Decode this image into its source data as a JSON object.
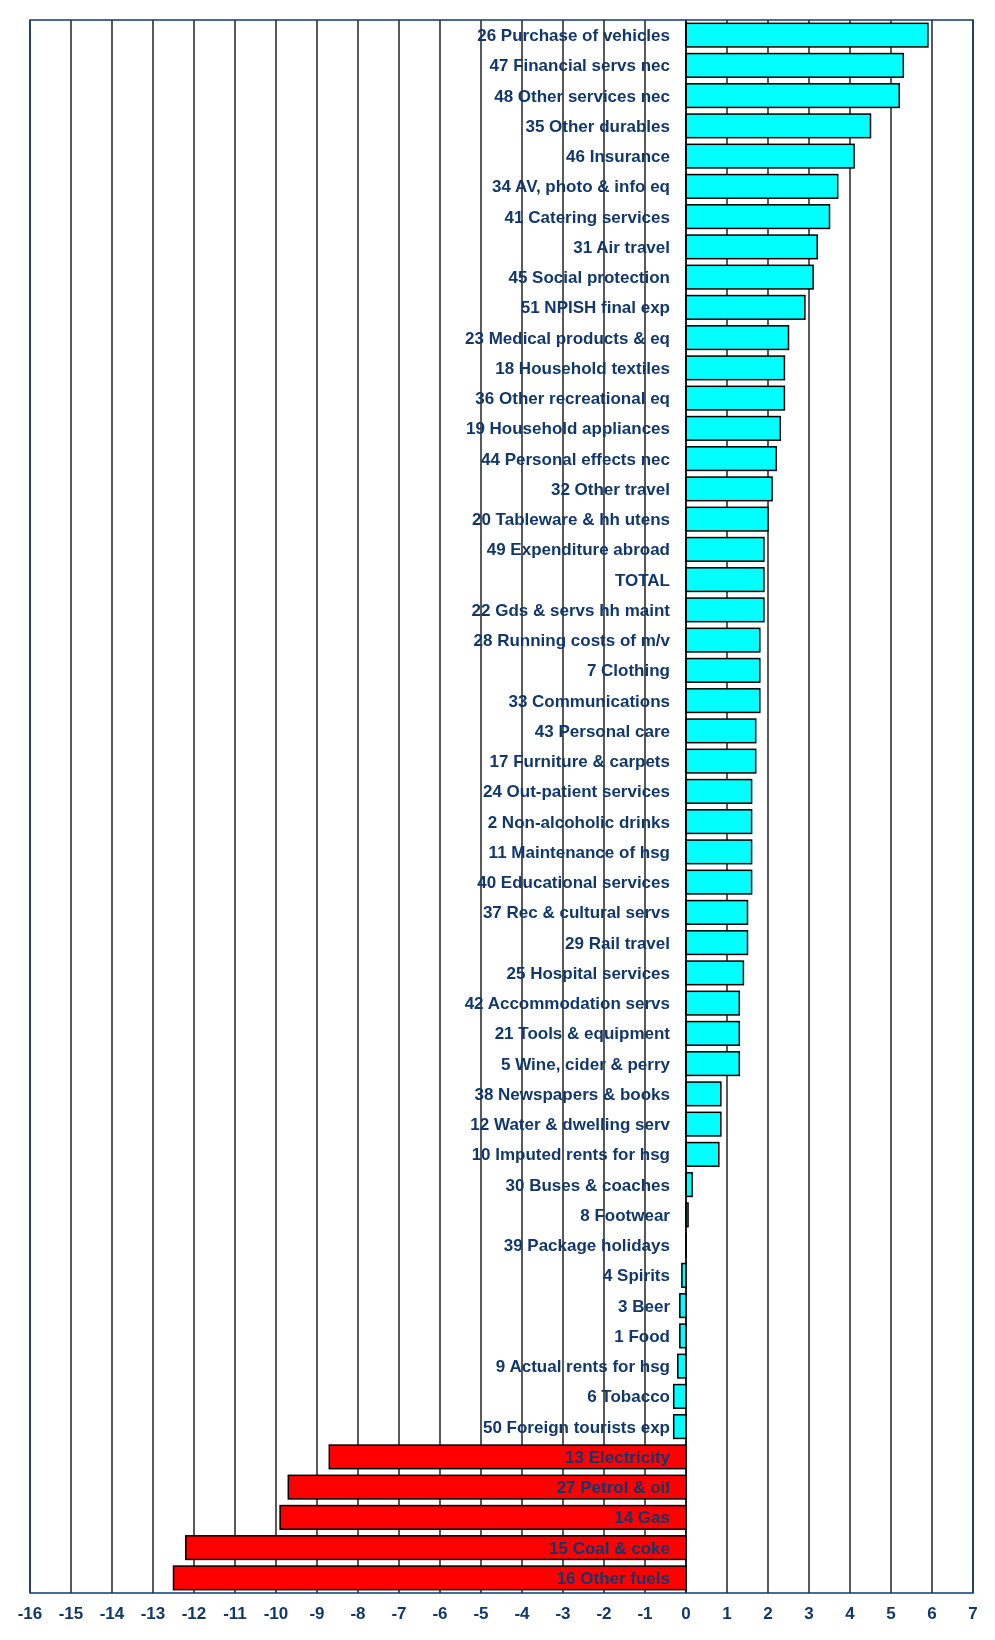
{
  "chart_data": {
    "type": "bar",
    "orientation": "horizontal",
    "categories": [
      "26 Purchase of vehicles",
      "47 Financial servs nec",
      "48 Other services nec",
      "35 Other durables",
      "46 Insurance",
      "34 AV, photo & info eq",
      "41 Catering services",
      "31 Air travel",
      "45 Social protection",
      "51 NPISH final exp",
      "23 Medical products & eq",
      "18 Household textiles",
      "36 Other recreational eq",
      "19 Household appliances",
      "44 Personal effects nec",
      "32 Other travel",
      "20 Tableware & hh utens",
      "49 Expenditure abroad",
      "TOTAL",
      "22 Gds & servs hh maint",
      "28 Running costs of m/v",
      "7 Clothing",
      "33 Communications",
      "43 Personal care",
      "17 Furniture & carpets",
      "24 Out-patient services",
      "2 Non-alcoholic drinks",
      "11 Maintenance of hsg",
      "40 Educational services",
      "37 Rec & cultural servs",
      "29 Rail travel",
      "25 Hospital services",
      "42 Accommodation servs",
      "21 Tools & equipment",
      "5 Wine, cider & perry",
      "38 Newspapers & books",
      "12 Water & dwelling serv",
      "10 Imputed rents for hsg",
      "30 Buses & coaches",
      "8 Footwear",
      "39 Package holidays",
      "4 Spirits",
      "3 Beer",
      "1 Food",
      "9 Actual rents for hsg",
      "6 Tobacco",
      "50 Foreign tourists exp",
      "13 Electricity",
      "27 Petrol & oil",
      "14 Gas",
      "15 Coal & coke",
      "16 Other fuels"
    ],
    "values": [
      5.9,
      5.3,
      5.2,
      4.5,
      4.1,
      3.7,
      3.5,
      3.2,
      3.1,
      2.9,
      2.5,
      2.4,
      2.4,
      2.3,
      2.2,
      2.1,
      2.0,
      1.9,
      1.9,
      1.9,
      1.8,
      1.8,
      1.8,
      1.7,
      1.7,
      1.6,
      1.6,
      1.6,
      1.6,
      1.5,
      1.5,
      1.4,
      1.3,
      1.3,
      1.3,
      0.85,
      0.85,
      0.8,
      0.15,
      0.05,
      0,
      -0.1,
      -0.15,
      -0.15,
      -0.2,
      -0.3,
      -0.3,
      -8.7,
      -9.7,
      -9.9,
      -12.2,
      -12.5
    ],
    "colors": [
      "#00ffff",
      "#00ffff",
      "#00ffff",
      "#00ffff",
      "#00ffff",
      "#00ffff",
      "#00ffff",
      "#00ffff",
      "#00ffff",
      "#00ffff",
      "#00ffff",
      "#00ffff",
      "#00ffff",
      "#00ffff",
      "#00ffff",
      "#00ffff",
      "#00ffff",
      "#00ffff",
      "#00ffff",
      "#00ffff",
      "#00ffff",
      "#00ffff",
      "#00ffff",
      "#00ffff",
      "#00ffff",
      "#00ffff",
      "#00ffff",
      "#00ffff",
      "#00ffff",
      "#00ffff",
      "#00ffff",
      "#00ffff",
      "#00ffff",
      "#00ffff",
      "#00ffff",
      "#00ffff",
      "#00ffff",
      "#00ffff",
      "#00ffff",
      "#00ffff",
      "#00ffff",
      "#00ffff",
      "#00ffff",
      "#00ffff",
      "#00ffff",
      "#00ffff",
      "#00ffff",
      "#ff0000",
      "#ff0000",
      "#ff0000",
      "#ff0000",
      "#ff0000"
    ],
    "xlim": [
      -16,
      7
    ],
    "xticks": [
      -16,
      -15,
      -14,
      -13,
      -12,
      -11,
      -10,
      -9,
      -8,
      -7,
      -6,
      -5,
      -4,
      -3,
      -2,
      -1,
      0,
      1,
      2,
      3,
      4,
      5,
      6,
      7
    ],
    "grid": "x"
  }
}
